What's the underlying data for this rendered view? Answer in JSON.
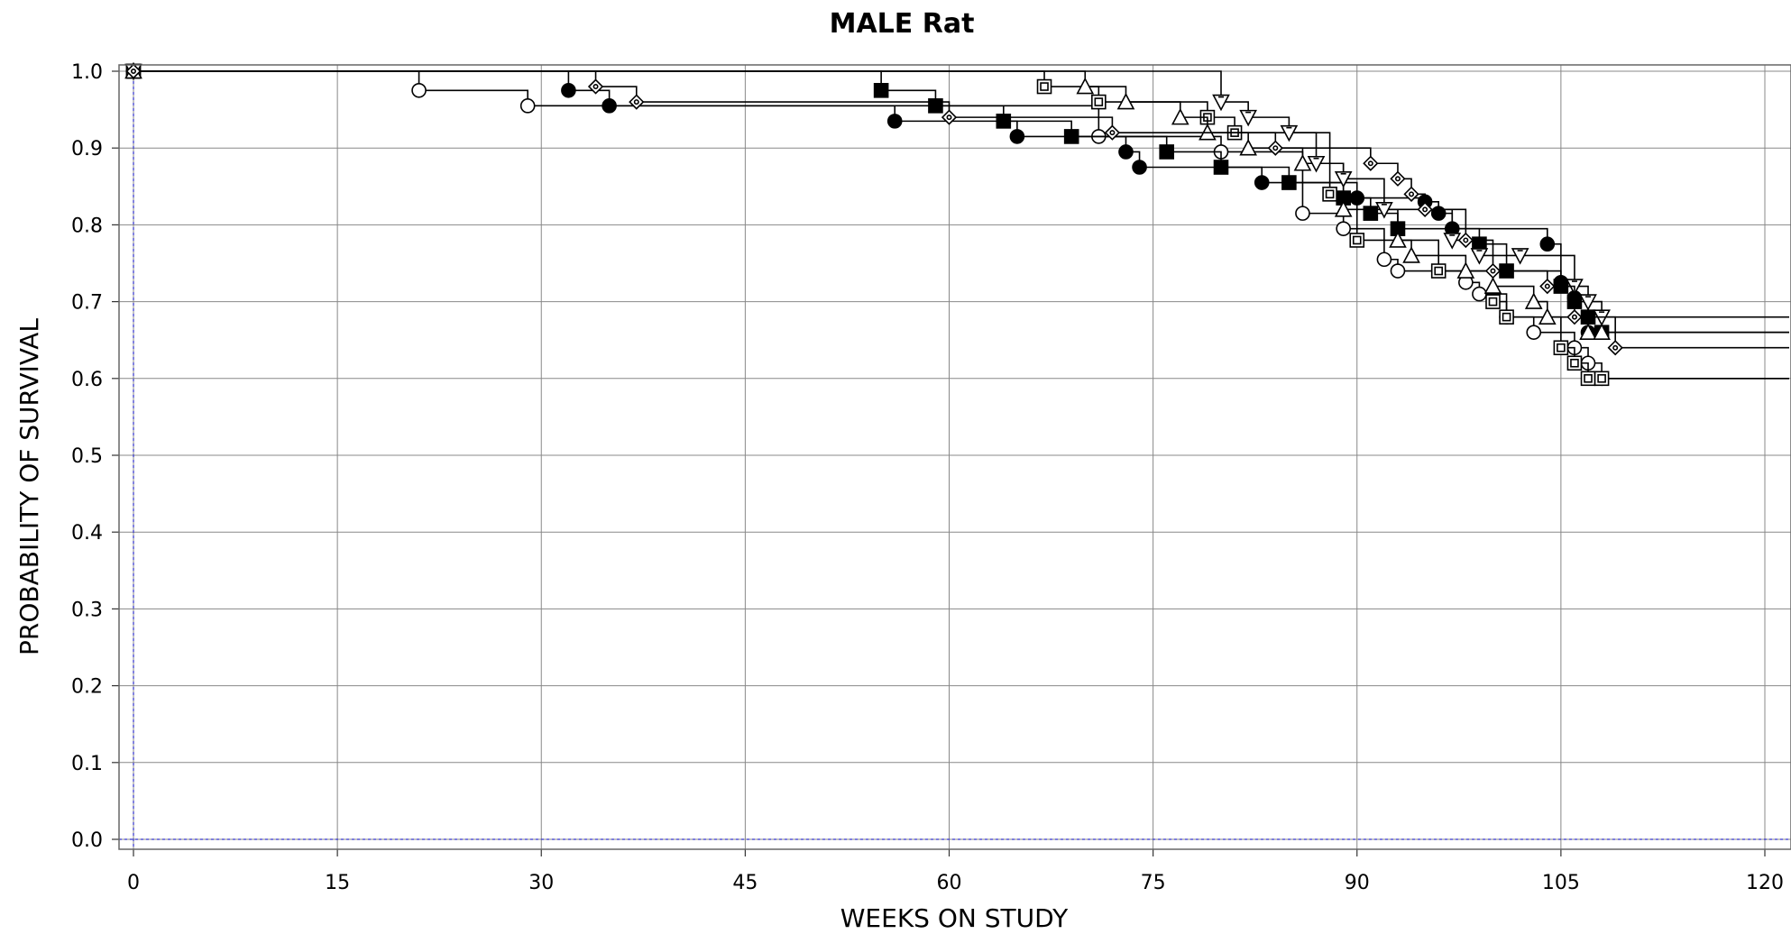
{
  "chart_data": {
    "type": "line",
    "step": true,
    "title": "MALE Rat",
    "xlabel": "WEEKS ON STUDY",
    "ylabel": "PROBABILITY OF SURVIVAL",
    "xlim": [
      -1,
      121
    ],
    "ylim": [
      -0.01,
      1.01
    ],
    "xticks": [
      0,
      15,
      30,
      45,
      60,
      75,
      90,
      105,
      120
    ],
    "yticks": [
      0.0,
      0.1,
      0.2,
      0.3,
      0.4,
      0.5,
      0.6,
      0.7,
      0.8,
      0.9,
      1.0
    ],
    "grid": true,
    "series": [
      {
        "marker": "circle-open",
        "x": [
          0,
          21,
          29,
          71,
          80,
          86,
          89,
          92,
          93,
          98,
          99,
          101,
          103,
          106,
          107,
          108
        ],
        "y": [
          1.0,
          0.975,
          0.955,
          0.915,
          0.895,
          0.815,
          0.795,
          0.755,
          0.74,
          0.725,
          0.71,
          0.68,
          0.66,
          0.64,
          0.62,
          0.6
        ]
      },
      {
        "marker": "circle-filled",
        "x": [
          0,
          32,
          35,
          56,
          65,
          73,
          74,
          83,
          90,
          95,
          96,
          97,
          104,
          105,
          106,
          107,
          108
        ],
        "y": [
          1.0,
          0.975,
          0.955,
          0.935,
          0.915,
          0.895,
          0.875,
          0.855,
          0.835,
          0.83,
          0.815,
          0.795,
          0.775,
          0.725,
          0.705,
          0.66,
          0.66
        ]
      },
      {
        "marker": "square-filled",
        "x": [
          0,
          55,
          59,
          64,
          69,
          76,
          80,
          85,
          89,
          91,
          93,
          99,
          101,
          105,
          106,
          107,
          108
        ],
        "y": [
          1.0,
          0.975,
          0.955,
          0.935,
          0.915,
          0.895,
          0.875,
          0.855,
          0.835,
          0.815,
          0.795,
          0.775,
          0.74,
          0.72,
          0.7,
          0.68,
          0.66
        ]
      },
      {
        "marker": "square-open",
        "x": [
          0,
          67,
          71,
          79,
          81,
          88,
          90,
          96,
          100,
          101,
          105,
          106,
          107,
          108
        ],
        "y": [
          1.0,
          0.98,
          0.96,
          0.94,
          0.92,
          0.84,
          0.78,
          0.74,
          0.7,
          0.68,
          0.64,
          0.62,
          0.6,
          0.6
        ]
      },
      {
        "marker": "triangle-up",
        "x": [
          0,
          70,
          73,
          77,
          79,
          82,
          86,
          89,
          93,
          94,
          98,
          100,
          103,
          104,
          107,
          108
        ],
        "y": [
          1.0,
          0.98,
          0.96,
          0.94,
          0.92,
          0.9,
          0.88,
          0.82,
          0.78,
          0.76,
          0.74,
          0.72,
          0.7,
          0.68,
          0.66,
          0.66
        ]
      },
      {
        "marker": "triangle-down",
        "x": [
          0,
          80,
          82,
          85,
          87,
          89,
          92,
          97,
          99,
          102,
          106,
          107,
          108
        ],
        "y": [
          1.0,
          0.96,
          0.94,
          0.92,
          0.88,
          0.86,
          0.82,
          0.78,
          0.76,
          0.76,
          0.72,
          0.7,
          0.68
        ]
      },
      {
        "marker": "diamond",
        "x": [
          0,
          34,
          37,
          60,
          72,
          84,
          91,
          93,
          94,
          95,
          98,
          100,
          104,
          106,
          109
        ],
        "y": [
          1.0,
          0.98,
          0.96,
          0.94,
          0.92,
          0.9,
          0.88,
          0.86,
          0.84,
          0.82,
          0.78,
          0.74,
          0.72,
          0.68,
          0.64
        ]
      }
    ]
  }
}
